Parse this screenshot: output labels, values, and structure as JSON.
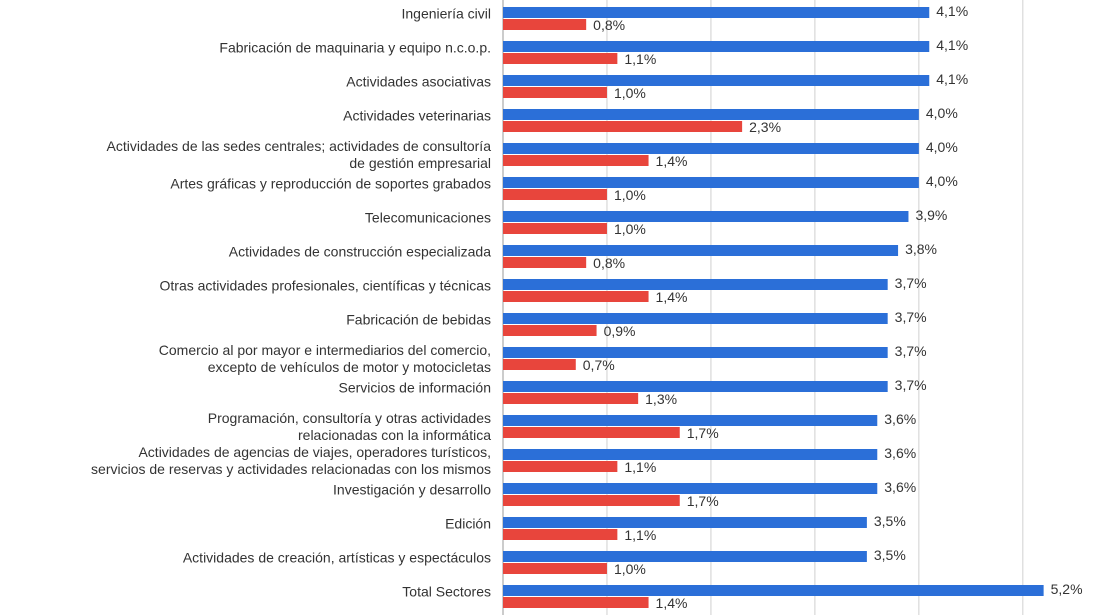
{
  "chart_data": {
    "type": "bar",
    "orientation": "horizontal",
    "categories": [
      "Ingeniería civil",
      "Fabricación de maquinaria y equipo n.c.o.p.",
      "Actividades asociativas",
      "Actividades veterinarias",
      "Actividades de las sedes centrales; actividades de consultoría\nde gestión empresarial",
      "Artes gráficas y reproducción de soportes grabados",
      "Telecomunicaciones",
      "Actividades de construcción especializada",
      "Otras actividades profesionales, científicas y técnicas",
      "Fabricación de bebidas",
      "Comercio al por mayor e intermediarios del comercio,\nexcepto de vehículos de motor y motocicletas",
      "Servicios de información",
      "Programación, consultoría y otras actividades\nrelacionadas con la informática",
      "Actividades de agencias de viajes, operadores turísticos,\nservicios de reservas y actividades relacionadas con los mismos",
      "Investigación y desarrollo",
      "Edición",
      "Actividades de creación, artísticas y espectáculos",
      "Total Sectores"
    ],
    "series": [
      {
        "color": "#2b6fd8",
        "values": [
          4.1,
          4.1,
          4.1,
          4.0,
          4.0,
          4.0,
          3.9,
          3.8,
          3.7,
          3.7,
          3.7,
          3.7,
          3.6,
          3.6,
          3.6,
          3.5,
          3.5,
          5.2
        ],
        "value_labels": [
          "4,1%",
          "4,1%",
          "4,1%",
          "4,0%",
          "4,0%",
          "4,0%",
          "3,9%",
          "3,8%",
          "3,7%",
          "3,7%",
          "3,7%",
          "3,7%",
          "3,6%",
          "3,6%",
          "3,6%",
          "3,5%",
          "3,5%",
          "5,2%"
        ]
      },
      {
        "color": "#e8453c",
        "values": [
          0.8,
          1.1,
          1.0,
          2.3,
          1.4,
          1.0,
          1.0,
          0.8,
          1.4,
          0.9,
          0.7,
          1.3,
          1.7,
          1.1,
          1.7,
          1.1,
          1.0,
          1.4
        ],
        "value_labels": [
          "0,8%",
          "1,1%",
          "1,0%",
          "2,3%",
          "1,4%",
          "1,0%",
          "1,0%",
          "0,8%",
          "1,4%",
          "0,9%",
          "0,7%",
          "1,3%",
          "1,7%",
          "1,1%",
          "1,7%",
          "1,1%",
          "1,0%",
          "1,4%"
        ]
      }
    ],
    "xlim": [
      0,
      5.8
    ],
    "xticks": [
      0,
      1,
      2,
      3,
      4,
      5
    ],
    "grid": true
  }
}
